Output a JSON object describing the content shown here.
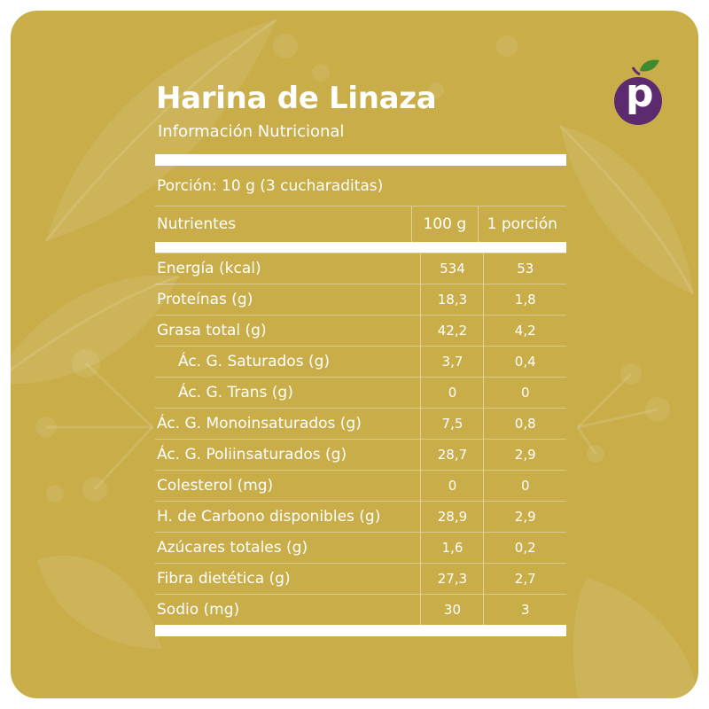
{
  "header": {
    "title": "Harina de Linaza",
    "subtitle": "Información Nutricional"
  },
  "portion": "Porción: 10 g (3 cucharaditas)",
  "table": {
    "headers": [
      "Nutrientes",
      "100 g",
      "1 porción"
    ],
    "rows": [
      {
        "name": "Energía (kcal)",
        "per100": "534",
        "perPortion": "53",
        "indent": false
      },
      {
        "name": "Proteínas (g)",
        "per100": "18,3",
        "perPortion": "1,8",
        "indent": false
      },
      {
        "name": "Grasa total (g)",
        "per100": "42,2",
        "perPortion": "4,2",
        "indent": false
      },
      {
        "name": "Ác. G. Saturados (g)",
        "per100": "3,7",
        "perPortion": "0,4",
        "indent": true
      },
      {
        "name": "Ác. G. Trans (g)",
        "per100": "0",
        "perPortion": "0",
        "indent": true
      },
      {
        "name": "Ác. G. Monoinsaturados (g)",
        "per100": "7,5",
        "perPortion": "0,8",
        "indent": false
      },
      {
        "name": "Ác. G. Poliinsaturados (g)",
        "per100": "28,7",
        "perPortion": "2,9",
        "indent": false
      },
      {
        "name": "Colesterol (mg)",
        "per100": "0",
        "perPortion": "0",
        "indent": false
      },
      {
        "name": "H. de Carbono disponibles (g)",
        "per100": "28,9",
        "perPortion": "2,9",
        "indent": false
      },
      {
        "name": "Azúcares totales (g)",
        "per100": "1,6",
        "perPortion": "0,2",
        "indent": false
      },
      {
        "name": "Fibra dietética (g)",
        "per100": "27,3",
        "perPortion": "2,7",
        "indent": false
      },
      {
        "name": "Sodio (mg)",
        "per100": "30",
        "perPortion": "3",
        "indent": false
      }
    ]
  },
  "logo": {
    "letter": "p",
    "icon": "plum-logo-icon"
  },
  "colors": {
    "background": "#c8ad49",
    "text": "#ffffff",
    "logoCircle": "#5c2a6e",
    "logoLeaf": "#3e8a2e"
  }
}
